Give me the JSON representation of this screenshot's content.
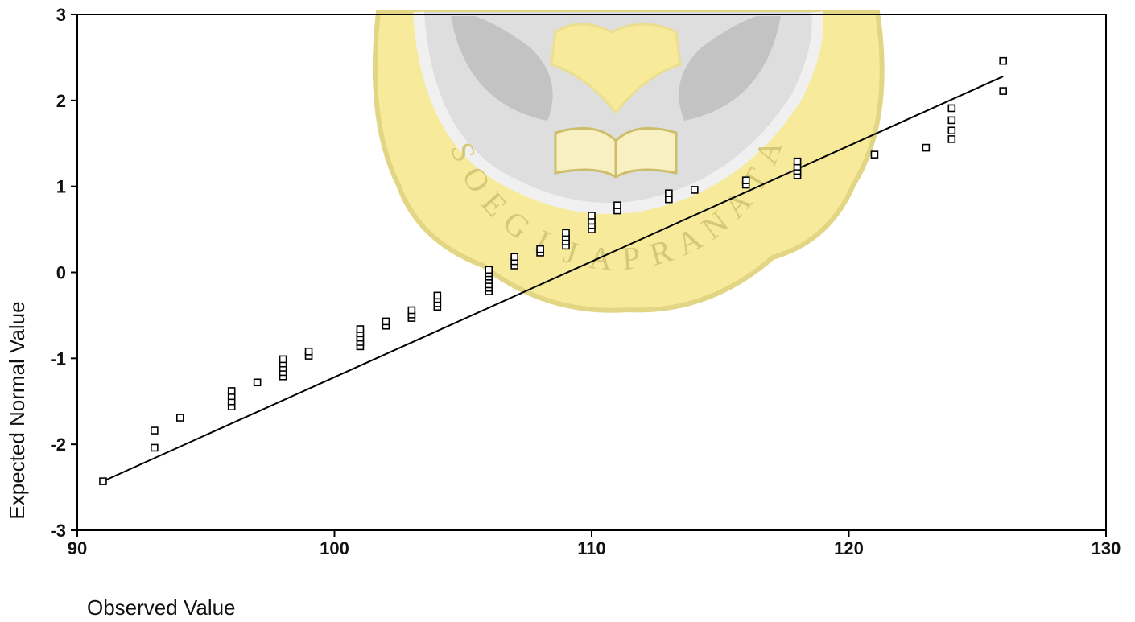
{
  "chart_data": {
    "type": "scatter",
    "xlabel": "Observed Value",
    "ylabel": "Expected Normal Value",
    "xlim": [
      90,
      130
    ],
    "ylim": [
      -3,
      3
    ],
    "x_ticks": [
      "90",
      "100",
      "110",
      "120",
      "130"
    ],
    "y_ticks": [
      "3",
      "2",
      "1",
      "0",
      "-1",
      "-2",
      "-3"
    ],
    "grid": false,
    "reference_line": {
      "x": [
        91,
        126
      ],
      "y": [
        -2.43,
        2.28
      ]
    },
    "series": [
      {
        "marker": "square",
        "points": [
          {
            "x": 91,
            "y": -2.43
          },
          {
            "x": 93,
            "y": -2.04
          },
          {
            "x": 93,
            "y": -1.84
          },
          {
            "x": 94,
            "y": -1.69
          },
          {
            "x": 96,
            "y": -1.56
          },
          {
            "x": 96,
            "y": -1.5
          },
          {
            "x": 96,
            "y": -1.44
          },
          {
            "x": 96,
            "y": -1.38
          },
          {
            "x": 97,
            "y": -1.28
          },
          {
            "x": 98,
            "y": -1.21
          },
          {
            "x": 98,
            "y": -1.16
          },
          {
            "x": 98,
            "y": -1.11
          },
          {
            "x": 98,
            "y": -1.06
          },
          {
            "x": 98,
            "y": -1.01
          },
          {
            "x": 99,
            "y": -0.97
          },
          {
            "x": 99,
            "y": -0.92
          },
          {
            "x": 101,
            "y": -0.86
          },
          {
            "x": 101,
            "y": -0.81
          },
          {
            "x": 101,
            "y": -0.76
          },
          {
            "x": 101,
            "y": -0.71
          },
          {
            "x": 101,
            "y": -0.66
          },
          {
            "x": 102,
            "y": -0.62
          },
          {
            "x": 102,
            "y": -0.57
          },
          {
            "x": 103,
            "y": -0.53
          },
          {
            "x": 103,
            "y": -0.49
          },
          {
            "x": 103,
            "y": -0.44
          },
          {
            "x": 104,
            "y": -0.4
          },
          {
            "x": 104,
            "y": -0.36
          },
          {
            "x": 104,
            "y": -0.31
          },
          {
            "x": 104,
            "y": -0.27
          },
          {
            "x": 106,
            "y": -0.22
          },
          {
            "x": 106,
            "y": -0.18
          },
          {
            "x": 106,
            "y": -0.14
          },
          {
            "x": 106,
            "y": -0.09
          },
          {
            "x": 106,
            "y": -0.05
          },
          {
            "x": 106,
            "y": -0.01
          },
          {
            "x": 106,
            "y": 0.03
          },
          {
            "x": 107,
            "y": 0.08
          },
          {
            "x": 107,
            "y": 0.13
          },
          {
            "x": 107,
            "y": 0.18
          },
          {
            "x": 108,
            "y": 0.23
          },
          {
            "x": 108,
            "y": 0.27
          },
          {
            "x": 109,
            "y": 0.31
          },
          {
            "x": 109,
            "y": 0.36
          },
          {
            "x": 109,
            "y": 0.41
          },
          {
            "x": 109,
            "y": 0.46
          },
          {
            "x": 110,
            "y": 0.5
          },
          {
            "x": 110,
            "y": 0.55
          },
          {
            "x": 110,
            "y": 0.6
          },
          {
            "x": 110,
            "y": 0.66
          },
          {
            "x": 111,
            "y": 0.72
          },
          {
            "x": 111,
            "y": 0.78
          },
          {
            "x": 113,
            "y": 0.85
          },
          {
            "x": 113,
            "y": 0.92
          },
          {
            "x": 114,
            "y": 0.96
          },
          {
            "x": 116,
            "y": 1.02
          },
          {
            "x": 116,
            "y": 1.07
          },
          {
            "x": 118,
            "y": 1.13
          },
          {
            "x": 118,
            "y": 1.18
          },
          {
            "x": 118,
            "y": 1.23
          },
          {
            "x": 118,
            "y": 1.29
          },
          {
            "x": 121,
            "y": 1.37
          },
          {
            "x": 123,
            "y": 1.45
          },
          {
            "x": 124,
            "y": 1.55
          },
          {
            "x": 124,
            "y": 1.65
          },
          {
            "x": 124,
            "y": 1.77
          },
          {
            "x": 124,
            "y": 1.91
          },
          {
            "x": 126,
            "y": 2.11
          },
          {
            "x": 126,
            "y": 2.46
          }
        ]
      }
    ]
  },
  "watermark": {
    "text": "SOEGIJAPRANATA",
    "colors": {
      "gold": "#f2e06a",
      "gray": "#b8b8b8"
    }
  }
}
